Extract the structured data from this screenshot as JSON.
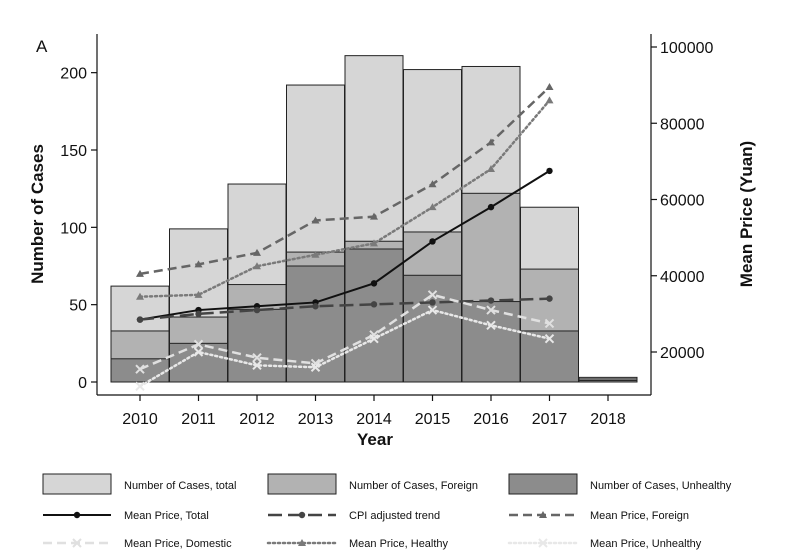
{
  "chart_data": {
    "type": "bar",
    "panel_label": "A",
    "xlabel": "Year",
    "ylabel": "Number of Cases",
    "y2label": "Mean Price (Yuan)",
    "categories": [
      "2010",
      "2011",
      "2012",
      "2013",
      "2014",
      "2015",
      "2016",
      "2017",
      "2018"
    ],
    "ylim": [
      0,
      225
    ],
    "y_ticks": [
      "0",
      "50",
      "100",
      "150",
      "200"
    ],
    "y2lim": [
      10000,
      102000
    ],
    "y2_ticks": [
      "20000",
      "40000",
      "60000",
      "80000",
      "100000"
    ],
    "bar_series": [
      {
        "name": "Number of Cases, total",
        "color": "#d6d6d6",
        "values": [
          62,
          99,
          128,
          192,
          211,
          202,
          204,
          113,
          3
        ]
      },
      {
        "name": "Number of Cases, Foreign",
        "color": "#b2b2b2",
        "values": [
          33,
          42,
          63,
          84,
          91,
          97,
          122,
          73,
          2
        ]
      },
      {
        "name": "Number of Cases, Unhealthy",
        "color": "#8c8c8c",
        "values": [
          15,
          25,
          47,
          75,
          86,
          69,
          52,
          33,
          1
        ]
      }
    ],
    "line_series": [
      {
        "name": "Mean Price, Total",
        "color": "#111111",
        "style": "solid",
        "marker": "circle",
        "values": [
          28500,
          31000,
          32000,
          33000,
          38000,
          49000,
          58000,
          67500,
          null
        ]
      },
      {
        "name": "CPI adjusted trend",
        "color": "#444444",
        "style": "longdash",
        "marker": "circle",
        "values": [
          28500,
          30000,
          31000,
          32000,
          32500,
          33000,
          33500,
          34000,
          null
        ]
      },
      {
        "name": "Mean Price, Foreign",
        "color": "#666666",
        "style": "dash",
        "marker": "triangle",
        "values": [
          40500,
          43000,
          46000,
          54500,
          55500,
          64000,
          75000,
          89500,
          null
        ]
      },
      {
        "name": "Mean Price, Domestic",
        "color": "#e0e0e0",
        "style": "dash",
        "marker": "x",
        "values": [
          15500,
          22000,
          18500,
          17000,
          24500,
          35000,
          31000,
          27500,
          null
        ]
      },
      {
        "name": "Mean Price, Healthy",
        "color": "#7a7a7a",
        "style": "dot",
        "marker": "triangle",
        "values": [
          34500,
          35000,
          42500,
          45500,
          48500,
          58000,
          68000,
          86000,
          null
        ]
      },
      {
        "name": "Mean Price, Unhealthy",
        "color": "#e8e8e8",
        "style": "dot",
        "marker": "x",
        "values": [
          11000,
          20000,
          16500,
          16000,
          23500,
          31000,
          27000,
          23500,
          null
        ]
      }
    ],
    "legend_position": "bottom",
    "grid": false
  }
}
